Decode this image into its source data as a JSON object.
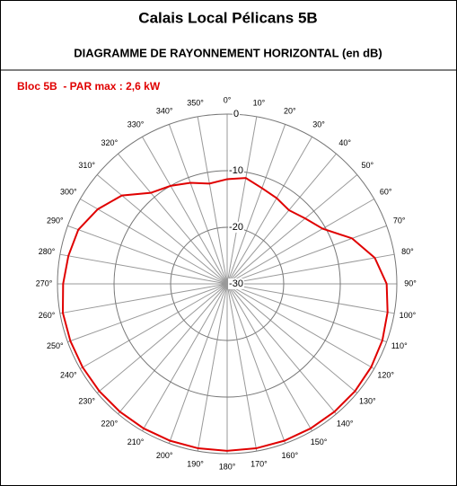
{
  "chart_data": {
    "type": "polar_line",
    "title": "Calais Local Pélicans 5B",
    "subtitle": "DIAGRAMME DE RAYONNEMENT HORIZONTAL  (en dB)",
    "annotation": "Bloc 5B  - PAR max : 2,6 kW",
    "angles": [
      {
        "value": 0,
        "label": "0°"
      },
      {
        "value": 10,
        "label": "10°"
      },
      {
        "value": 20,
        "label": "20°"
      },
      {
        "value": 30,
        "label": "30°"
      },
      {
        "value": 40,
        "label": "40°"
      },
      {
        "value": 50,
        "label": "50°"
      },
      {
        "value": 60,
        "label": "60°"
      },
      {
        "value": 70,
        "label": "70°"
      },
      {
        "value": 80,
        "label": "80°"
      },
      {
        "value": 90,
        "label": "90°"
      },
      {
        "value": 100,
        "label": "100°"
      },
      {
        "value": 110,
        "label": "110°"
      },
      {
        "value": 120,
        "label": "120°"
      },
      {
        "value": 130,
        "label": "130°"
      },
      {
        "value": 140,
        "label": "140°"
      },
      {
        "value": 150,
        "label": "150°"
      },
      {
        "value": 160,
        "label": "160°"
      },
      {
        "value": 170,
        "label": "170°"
      },
      {
        "value": 180,
        "label": "180°"
      },
      {
        "value": 190,
        "label": "190°"
      },
      {
        "value": 200,
        "label": "200°"
      },
      {
        "value": 210,
        "label": "210°"
      },
      {
        "value": 220,
        "label": "220°"
      },
      {
        "value": 230,
        "label": "230°"
      },
      {
        "value": 240,
        "label": "240°"
      },
      {
        "value": 250,
        "label": "250°"
      },
      {
        "value": 260,
        "label": "260°"
      },
      {
        "value": 270,
        "label": "270°"
      },
      {
        "value": 280,
        "label": "280°"
      },
      {
        "value": 290,
        "label": "290°"
      },
      {
        "value": 300,
        "label": "300°"
      },
      {
        "value": 310,
        "label": "310°"
      },
      {
        "value": 320,
        "label": "320°"
      },
      {
        "value": 330,
        "label": "330°"
      },
      {
        "value": 340,
        "label": "340°"
      },
      {
        "value": 350,
        "label": "350°"
      }
    ],
    "values": [
      -11.5,
      -11,
      -12,
      -12.5,
      -13,
      -12,
      -10.5,
      -6.5,
      -3.5,
      -1.8,
      -1.2,
      -0.8,
      -0.6,
      -0.5,
      -0.5,
      -0.5,
      -0.5,
      -0.5,
      -0.5,
      -0.5,
      -0.5,
      -0.5,
      -0.5,
      -0.5,
      -0.5,
      -0.5,
      -0.5,
      -1,
      -1.5,
      -2,
      -3.6,
      -5.7,
      -9,
      -10,
      -11,
      -12
    ],
    "color": "#e00000",
    "rlim": [
      -30,
      0
    ],
    "rticks": [
      -30,
      -20,
      -10,
      0
    ],
    "grid": true
  }
}
